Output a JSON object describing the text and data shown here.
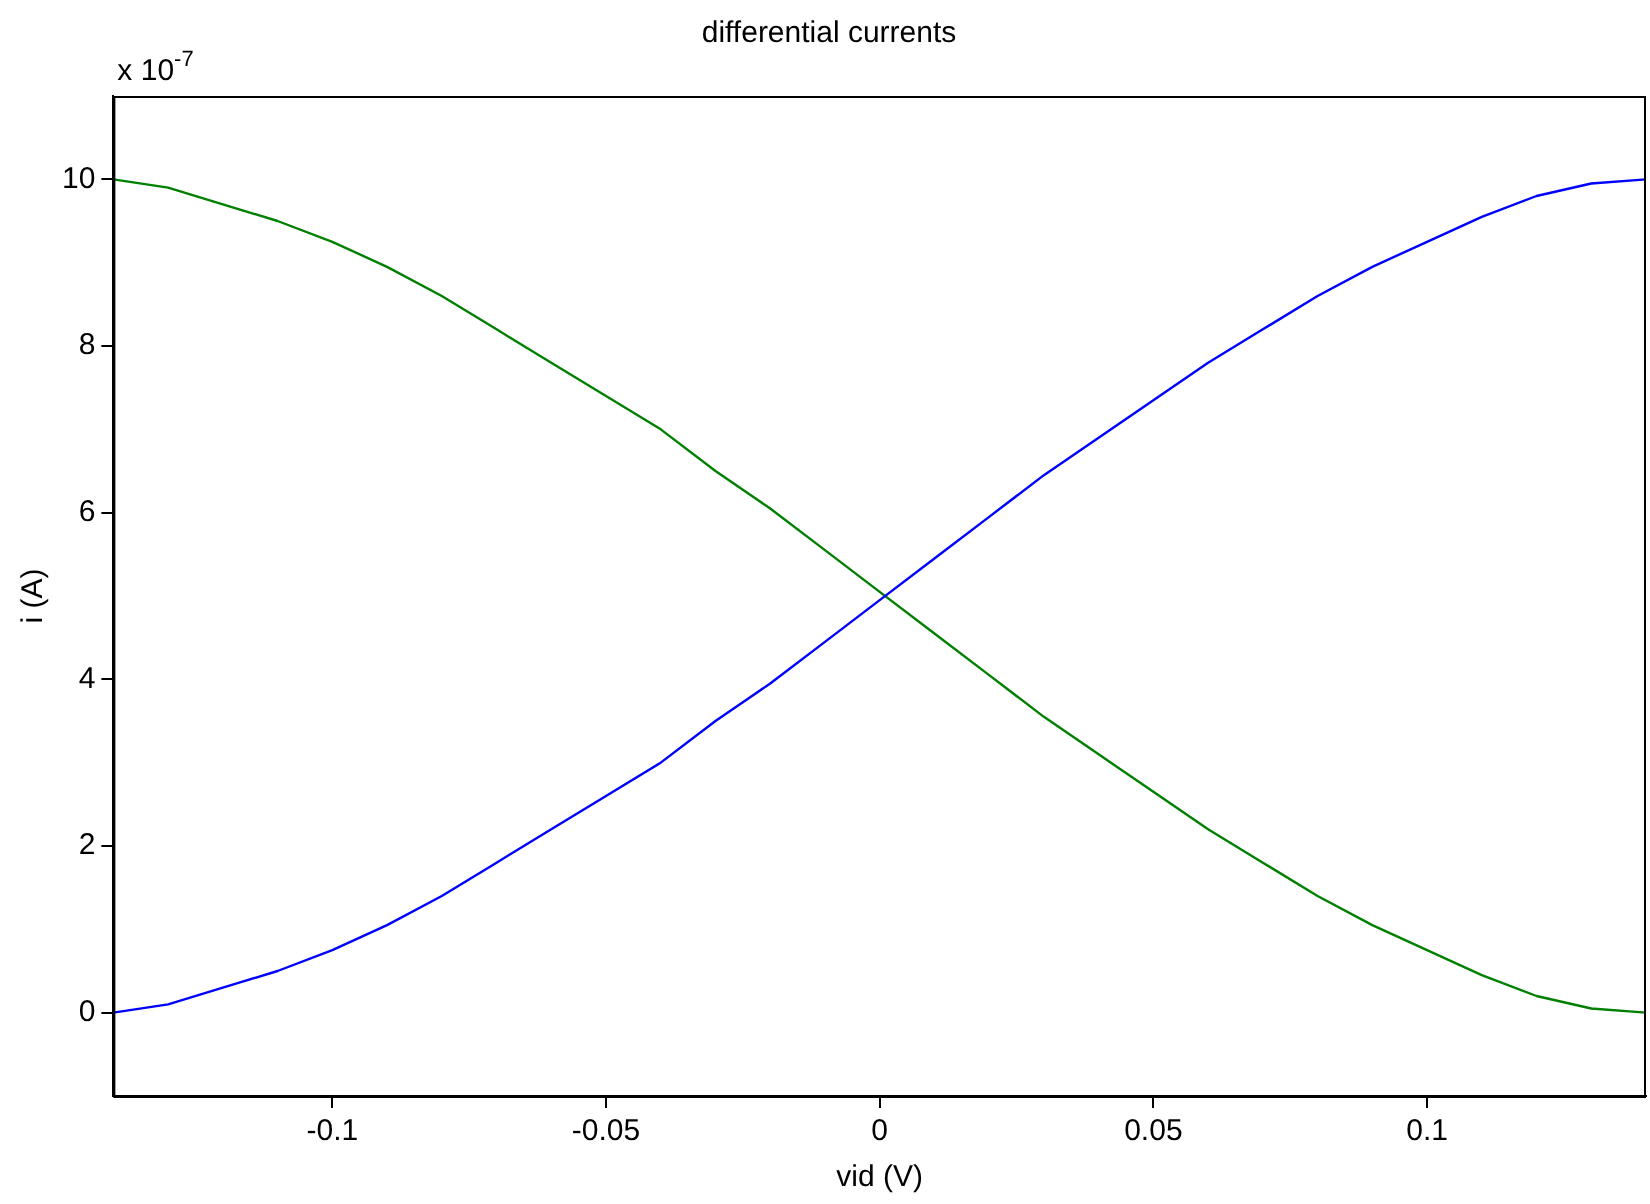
{
  "chart_data": {
    "type": "line",
    "title": "differential currents",
    "xlabel": "vid (V)",
    "ylabel": "i (A)",
    "annotations": [
      "x 10$^{-7}$"
    ],
    "x": [
      -0.14,
      -0.13,
      -0.12,
      -0.11,
      -0.1,
      -0.09,
      -0.08,
      -0.07,
      -0.06,
      -0.05,
      -0.04,
      -0.03,
      -0.02,
      -0.01,
      0,
      0.01,
      0.02,
      0.03,
      0.04,
      0.05,
      0.06,
      0.07,
      0.08,
      0.09,
      0.1,
      0.11,
      0.12,
      0.13,
      0.14
    ],
    "series": [
      {
        "color": "#0000ff",
        "values": [
          0,
          0.1,
          0.3,
          0.5,
          0.75,
          1.05,
          1.4,
          1.8,
          2.2,
          2.6,
          3.0,
          3.5,
          3.95,
          4.45,
          4.95,
          5.45,
          5.95,
          6.45,
          6.9,
          7.35,
          7.8,
          8.2,
          8.6,
          8.95,
          9.25,
          9.55,
          9.8,
          9.95,
          10
        ]
      },
      {
        "color": "#008000",
        "values": [
          10,
          9.9,
          9.7,
          9.5,
          9.25,
          8.95,
          8.6,
          8.2,
          7.8,
          7.4,
          7.0,
          6.5,
          6.05,
          5.55,
          5.05,
          4.55,
          4.05,
          3.55,
          3.1,
          2.65,
          2.2,
          1.8,
          1.4,
          1.05,
          0.75,
          0.45,
          0.2,
          0.05,
          0
        ]
      }
    ],
    "xlim": [
      -0.14,
      0.14
    ],
    "xticks": [
      -0.1,
      -0.05,
      0,
      0.05,
      0.1
    ],
    "ylim": [
      -1,
      11
    ],
    "yticks": [
      0,
      2,
      4,
      6,
      8,
      10
    ],
    "grid": false,
    "legend": false,
    "marker": "none",
    "line_style": "solid"
  }
}
